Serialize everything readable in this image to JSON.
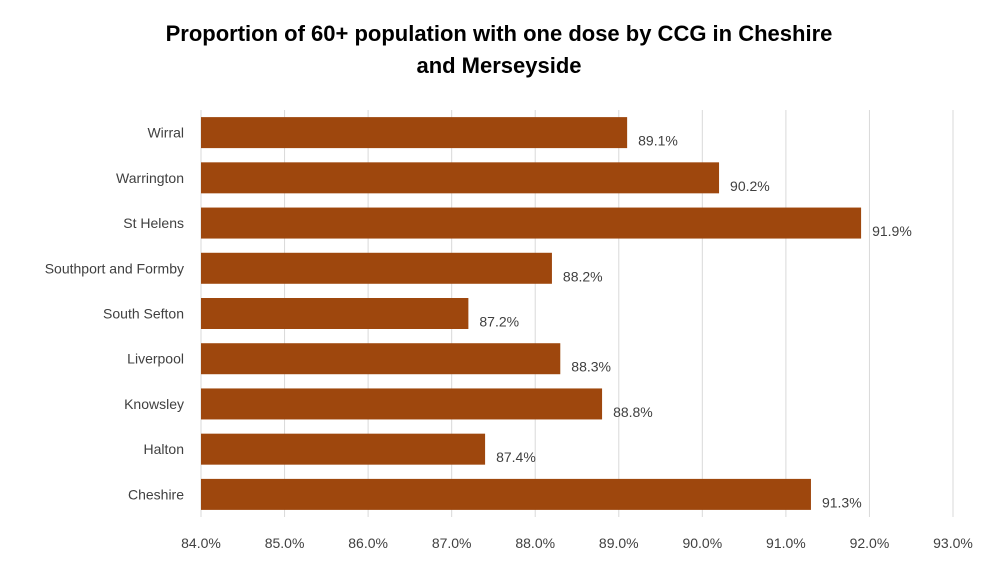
{
  "chart_data": {
    "type": "bar",
    "orientation": "horizontal",
    "title": "Proportion of 60+ population with one dose by CCG in Cheshire and Merseyside",
    "title_lines": [
      "Proportion of 60+ population with one dose by CCG in Cheshire",
      "and Merseyside"
    ],
    "categories": [
      "Wirral",
      "Warrington",
      "St Helens",
      "Southport and Formby",
      "South Sefton",
      "Liverpool",
      "Knowsley",
      "Halton",
      "Cheshire"
    ],
    "values": [
      89.1,
      90.2,
      91.9,
      88.2,
      87.2,
      88.3,
      88.8,
      87.4,
      91.3
    ],
    "data_labels": [
      "89.1%",
      "90.2%",
      "91.9%",
      "88.2%",
      "87.2%",
      "88.3%",
      "88.8%",
      "87.4%",
      "91.3%"
    ],
    "xlim": [
      84.0,
      93.0
    ],
    "xticks": [
      "84.0%",
      "85.0%",
      "86.0%",
      "87.0%",
      "88.0%",
      "89.0%",
      "90.0%",
      "91.0%",
      "92.0%",
      "93.0%"
    ],
    "grid": true,
    "legend": "none",
    "bar_color": "#9E470D"
  }
}
